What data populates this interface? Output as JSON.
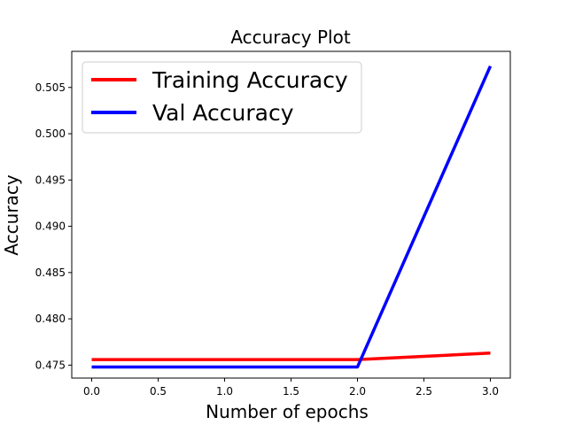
{
  "chart_data": {
    "type": "line",
    "title": "Accuracy Plot",
    "xlabel": "Number of epochs",
    "ylabel": "Accuracy",
    "x": [
      0,
      1,
      2,
      3
    ],
    "xlim": [
      -0.15,
      3.15
    ],
    "ylim": [
      0.4736,
      0.5089
    ],
    "xticks": [
      0.0,
      0.5,
      1.0,
      1.5,
      2.0,
      2.5,
      3.0
    ],
    "yticks": [
      0.475,
      0.48,
      0.485,
      0.49,
      0.495,
      0.5,
      0.505
    ],
    "xtick_labels": [
      "0.0",
      "0.5",
      "1.0",
      "1.5",
      "2.0",
      "2.5",
      "3.0"
    ],
    "ytick_labels": [
      "0.475",
      "0.480",
      "0.485",
      "0.490",
      "0.495",
      "0.500",
      "0.505"
    ],
    "legend_position": "upper-left",
    "grid": false,
    "series": [
      {
        "name": "Training Accuracy",
        "color": "#ff0000",
        "values": [
          0.4756,
          0.4756,
          0.4756,
          0.4763
        ]
      },
      {
        "name": "Val Accuracy",
        "color": "#0000ff",
        "values": [
          0.4748,
          0.4748,
          0.4748,
          0.5073
        ]
      }
    ]
  }
}
